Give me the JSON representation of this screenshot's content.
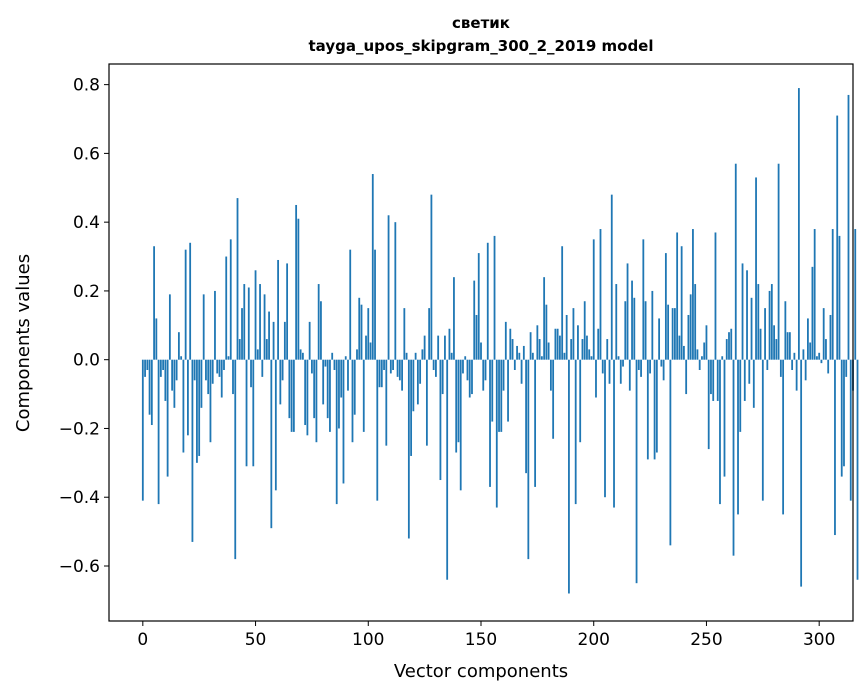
{
  "chart_data": {
    "type": "bar",
    "title": "светик",
    "subtitle": "tayga_upos_skipgram_300_2_2019 model",
    "xlabel": "Vector components",
    "ylabel": "Components values",
    "xlim": [
      -15,
      315
    ],
    "ylim": [
      -0.76,
      0.86
    ],
    "x_ticks": [
      0,
      50,
      100,
      150,
      200,
      250,
      300
    ],
    "y_ticks": [
      -0.6,
      -0.4,
      -0.2,
      0.0,
      0.2,
      0.4,
      0.6,
      0.8
    ],
    "x_tick_labels": [
      "0",
      "50",
      "100",
      "150",
      "200",
      "250",
      "300"
    ],
    "y_tick_labels": [
      "−0.6",
      "−0.4",
      "−0.2",
      "0.0",
      "0.2",
      "0.4",
      "0.6",
      "0.8"
    ],
    "bar_color": "#1f77b4",
    "values": [
      -0.41,
      -0.05,
      -0.03,
      -0.16,
      -0.19,
      0.33,
      0.12,
      -0.42,
      -0.05,
      -0.03,
      -0.12,
      -0.34,
      0.19,
      -0.09,
      -0.14,
      -0.06,
      0.08,
      0.01,
      -0.27,
      0.32,
      -0.22,
      0.34,
      -0.53,
      -0.06,
      -0.3,
      -0.28,
      -0.14,
      0.19,
      -0.06,
      -0.1,
      -0.24,
      -0.07,
      0.2,
      -0.04,
      -0.05,
      -0.11,
      -0.03,
      0.3,
      0.01,
      0.35,
      -0.1,
      -0.58,
      0.47,
      0.06,
      0.15,
      0.22,
      -0.31,
      0.21,
      -0.08,
      -0.31,
      0.26,
      0.03,
      0.22,
      -0.05,
      0.19,
      0.06,
      0.14,
      -0.49,
      0.11,
      -0.38,
      0.29,
      -0.13,
      -0.06,
      0.11,
      0.28,
      -0.17,
      -0.21,
      -0.21,
      0.45,
      0.41,
      0.03,
      0.02,
      -0.19,
      -0.22,
      0.11,
      -0.04,
      -0.17,
      -0.24,
      0.22,
      0.17,
      -0.13,
      -0.02,
      -0.17,
      -0.21,
      0.02,
      -0.03,
      -0.42,
      -0.2,
      -0.11,
      -0.36,
      0.01,
      -0.09,
      0.32,
      -0.24,
      -0.16,
      0.03,
      0.18,
      0.16,
      -0.21,
      0.07,
      0.15,
      0.05,
      0.54,
      0.32,
      -0.41,
      -0.08,
      -0.08,
      -0.03,
      -0.25,
      0.42,
      -0.04,
      -0.03,
      0.4,
      -0.05,
      -0.06,
      -0.09,
      0.15,
      0.02,
      -0.52,
      -0.28,
      -0.15,
      0.02,
      -0.13,
      -0.07,
      0.03,
      0.07,
      -0.25,
      0.15,
      0.48,
      -0.03,
      -0.05,
      0.07,
      -0.35,
      -0.1,
      0.07,
      -0.64,
      0.09,
      0.02,
      0.24,
      -0.27,
      -0.24,
      -0.38,
      -0.04,
      0.01,
      -0.06,
      -0.11,
      -0.1,
      0.23,
      0.13,
      0.31,
      0.05,
      -0.09,
      -0.06,
      0.34,
      -0.37,
      -0.18,
      0.36,
      -0.43,
      -0.21,
      -0.21,
      -0.09,
      0.11,
      -0.18,
      0.09,
      0.06,
      -0.03,
      0.04,
      0.02,
      -0.07,
      0.04,
      -0.33,
      -0.58,
      0.08,
      0.02,
      -0.37,
      0.1,
      0.06,
      0.01,
      0.24,
      0.16,
      0.05,
      -0.09,
      -0.23,
      0.09,
      0.09,
      0.07,
      0.33,
      0.02,
      0.13,
      -0.68,
      0.06,
      0.15,
      -0.42,
      0.1,
      -0.24,
      0.06,
      0.17,
      0.07,
      0.03,
      0.01,
      0.35,
      -0.11,
      0.09,
      0.38,
      -0.04,
      -0.4,
      0.06,
      -0.07,
      0.48,
      -0.43,
      0.22,
      0.01,
      -0.07,
      -0.02,
      0.17,
      0.28,
      -0.09,
      0.23,
      0.18,
      -0.65,
      -0.03,
      -0.05,
      0.35,
      0.17,
      -0.29,
      -0.04,
      0.2,
      -0.29,
      -0.27,
      0.12,
      -0.02,
      -0.06,
      0.31,
      0.16,
      -0.54,
      0.15,
      0.15,
      0.37,
      0.07,
      0.33,
      0.04,
      -0.1,
      0.13,
      0.19,
      0.38,
      0.22,
      0.03,
      -0.03,
      0.01,
      0.05,
      0.1,
      -0.26,
      -0.1,
      -0.12,
      0.37,
      -0.12,
      -0.42,
      0.01,
      -0.34,
      0.06,
      0.08,
      0.09,
      -0.57,
      0.57,
      -0.45,
      -0.21,
      0.28,
      -0.12,
      0.26,
      -0.07,
      0.18,
      -0.14,
      0.53,
      0.22,
      0.09,
      -0.41,
      0.15,
      -0.03,
      0.2,
      0.22,
      0.1,
      0.06,
      0.57,
      -0.05,
      -0.45,
      0.17,
      0.08,
      0.08,
      -0.03,
      0.02,
      -0.09,
      0.79,
      -0.66,
      0.03,
      -0.06,
      0.12,
      0.05,
      0.27,
      0.38,
      0.01,
      0.02,
      -0.01,
      0.15,
      0.06,
      -0.04,
      0.13,
      0.38,
      -0.51,
      0.71,
      0.36,
      -0.34,
      -0.31,
      -0.05,
      0.77,
      -0.41,
      -0.09,
      0.38,
      -0.64
    ]
  }
}
